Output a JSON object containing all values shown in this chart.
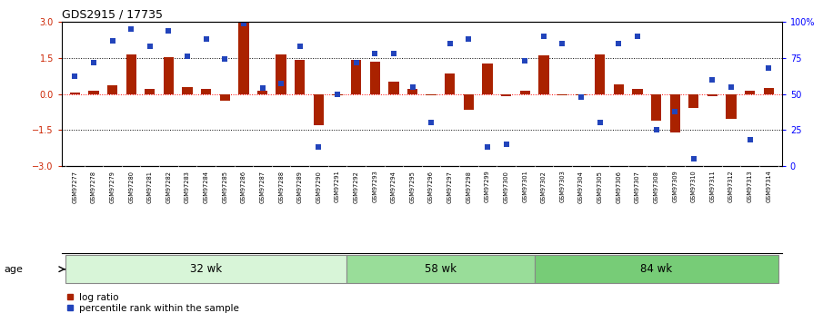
{
  "title": "GDS2915 / 17735",
  "samples": [
    "GSM97277",
    "GSM97278",
    "GSM97279",
    "GSM97280",
    "GSM97281",
    "GSM97282",
    "GSM97283",
    "GSM97284",
    "GSM97285",
    "GSM97286",
    "GSM97287",
    "GSM97288",
    "GSM97289",
    "GSM97290",
    "GSM97291",
    "GSM97292",
    "GSM97293",
    "GSM97294",
    "GSM97295",
    "GSM97296",
    "GSM97297",
    "GSM97298",
    "GSM97299",
    "GSM97300",
    "GSM97301",
    "GSM97302",
    "GSM97303",
    "GSM97304",
    "GSM97305",
    "GSM97306",
    "GSM97307",
    "GSM97308",
    "GSM97309",
    "GSM97310",
    "GSM97311",
    "GSM97312",
    "GSM97313",
    "GSM97314"
  ],
  "log_ratio": [
    0.05,
    0.15,
    0.35,
    1.65,
    0.22,
    1.55,
    0.3,
    0.2,
    -0.3,
    3.0,
    0.12,
    1.65,
    1.42,
    -1.3,
    -0.05,
    1.4,
    1.35,
    0.5,
    0.22,
    -0.05,
    0.85,
    -0.65,
    1.25,
    -0.1,
    0.15,
    1.6,
    -0.05,
    -0.05,
    1.65,
    0.4,
    0.2,
    -1.1,
    -1.6,
    -0.6,
    -0.1,
    -1.05,
    0.15,
    0.25
  ],
  "percentile": [
    62,
    72,
    87,
    95,
    83,
    94,
    76,
    88,
    74,
    99,
    54,
    57,
    83,
    13,
    50,
    72,
    78,
    78,
    55,
    30,
    85,
    88,
    13,
    15,
    73,
    90,
    85,
    48,
    30,
    85,
    90,
    25,
    38,
    5,
    60,
    55,
    18,
    68
  ],
  "groups": [
    {
      "label": "32 wk",
      "start": 0,
      "end": 15,
      "color": "#d8f5d8"
    },
    {
      "label": "58 wk",
      "start": 15,
      "end": 25,
      "color": "#99dd99"
    },
    {
      "label": "84 wk",
      "start": 25,
      "end": 38,
      "color": "#77cc77"
    }
  ],
  "bar_color": "#aa2200",
  "dot_color": "#2244bb",
  "ylim": [
    -3,
    3
  ],
  "yticks_left": [
    -3,
    -1.5,
    0,
    1.5,
    3
  ],
  "yticks_right": [
    0,
    25,
    50,
    75,
    100
  ],
  "group_label": "age"
}
